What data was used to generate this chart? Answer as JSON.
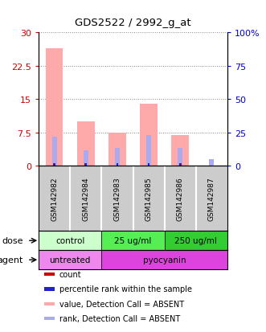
{
  "title": "GDS2522 / 2992_g_at",
  "samples": [
    "GSM142982",
    "GSM142984",
    "GSM142983",
    "GSM142985",
    "GSM142986",
    "GSM142987"
  ],
  "pink_bar_heights": [
    26.5,
    10.0,
    7.5,
    14.0,
    7.0,
    0.0
  ],
  "blue_bar_heights": [
    6.5,
    3.5,
    4.0,
    7.0,
    4.0,
    1.5
  ],
  "has_red_dot": [
    true,
    true,
    true,
    true,
    true,
    false
  ],
  "has_blue_dot": [
    true,
    true,
    true,
    true,
    true,
    false
  ],
  "left_ylim": [
    0,
    30
  ],
  "right_ylim": [
    0,
    100
  ],
  "left_yticks": [
    0,
    7.5,
    15,
    22.5,
    30
  ],
  "right_yticks": [
    0,
    25,
    50,
    75,
    100
  ],
  "right_yticklabels": [
    "0",
    "25",
    "50",
    "75",
    "100%"
  ],
  "left_yticklabels": [
    "0",
    "7.5",
    "15",
    "22.5",
    "30"
  ],
  "dose_groups": [
    {
      "label": "control",
      "start": 0,
      "end": 2,
      "color": "#ccffcc"
    },
    {
      "label": "25 ug/ml",
      "start": 2,
      "end": 4,
      "color": "#55ee55"
    },
    {
      "label": "250 ug/ml",
      "start": 4,
      "end": 6,
      "color": "#33cc33"
    }
  ],
  "agent_groups": [
    {
      "label": "untreated",
      "start": 0,
      "end": 2,
      "color": "#ee88ee"
    },
    {
      "label": "pyocyanin",
      "start": 2,
      "end": 6,
      "color": "#dd44dd"
    }
  ],
  "legend_items": [
    {
      "color": "#cc0000",
      "label": "count"
    },
    {
      "color": "#2222cc",
      "label": "percentile rank within the sample"
    },
    {
      "color": "#ffaaaa",
      "label": "value, Detection Call = ABSENT"
    },
    {
      "color": "#aaaaee",
      "label": "rank, Detection Call = ABSENT"
    }
  ],
  "pink_color": "#ffaaaa",
  "blue_color": "#aaaaee",
  "red_color": "#cc0000",
  "darkblue_color": "#2222cc",
  "bg_color": "#ffffff",
  "plot_bg": "#ffffff",
  "sample_bg": "#cccccc",
  "grid_color": "#888888"
}
